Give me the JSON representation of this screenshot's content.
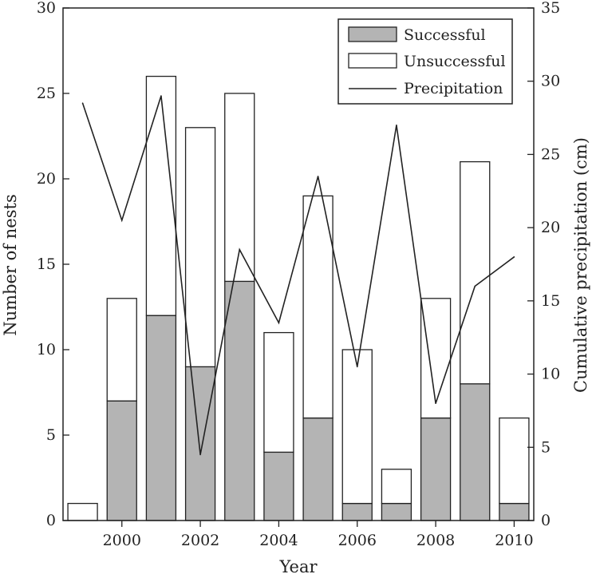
{
  "chart_data": {
    "type": "bar",
    "stacked": true,
    "title": "",
    "xlabel": "Year",
    "ylabel": "Number of nests",
    "y2label": "Cumulative precipitation (cm)",
    "ylim": [
      0,
      30
    ],
    "y2lim": [
      0,
      35
    ],
    "y_ticks": [
      "0",
      "5",
      "10",
      "15",
      "20",
      "25",
      "30"
    ],
    "y2_ticks": [
      "0",
      "5",
      "10",
      "15",
      "20",
      "25",
      "30",
      "35"
    ],
    "x_ticks": [
      "2000",
      "2002",
      "2004",
      "2006",
      "2008",
      "2010"
    ],
    "x": [
      1999,
      2000,
      2001,
      2002,
      2003,
      2004,
      2005,
      2006,
      2007,
      2008,
      2009,
      2010
    ],
    "xlim": [
      1998.5,
      2010.5
    ],
    "legend_position": "top-right",
    "series": [
      {
        "name": "Successful",
        "type": "bar",
        "color": "#b4b4b4",
        "values": [
          0,
          7,
          12,
          9,
          14,
          4,
          6,
          1,
          1,
          6,
          8,
          1
        ]
      },
      {
        "name": "Unsuccessful",
        "type": "bar",
        "color": "#ffffff",
        "values": [
          1,
          6,
          14,
          14,
          11,
          7,
          13,
          9,
          2,
          7,
          13,
          5
        ]
      },
      {
        "name": "Precipitation",
        "type": "line",
        "axis": "right",
        "color": "#222222",
        "values": [
          28.5,
          20.5,
          29,
          4.5,
          18.5,
          13.5,
          23.5,
          10.5,
          27,
          8,
          16,
          18
        ]
      }
    ]
  }
}
